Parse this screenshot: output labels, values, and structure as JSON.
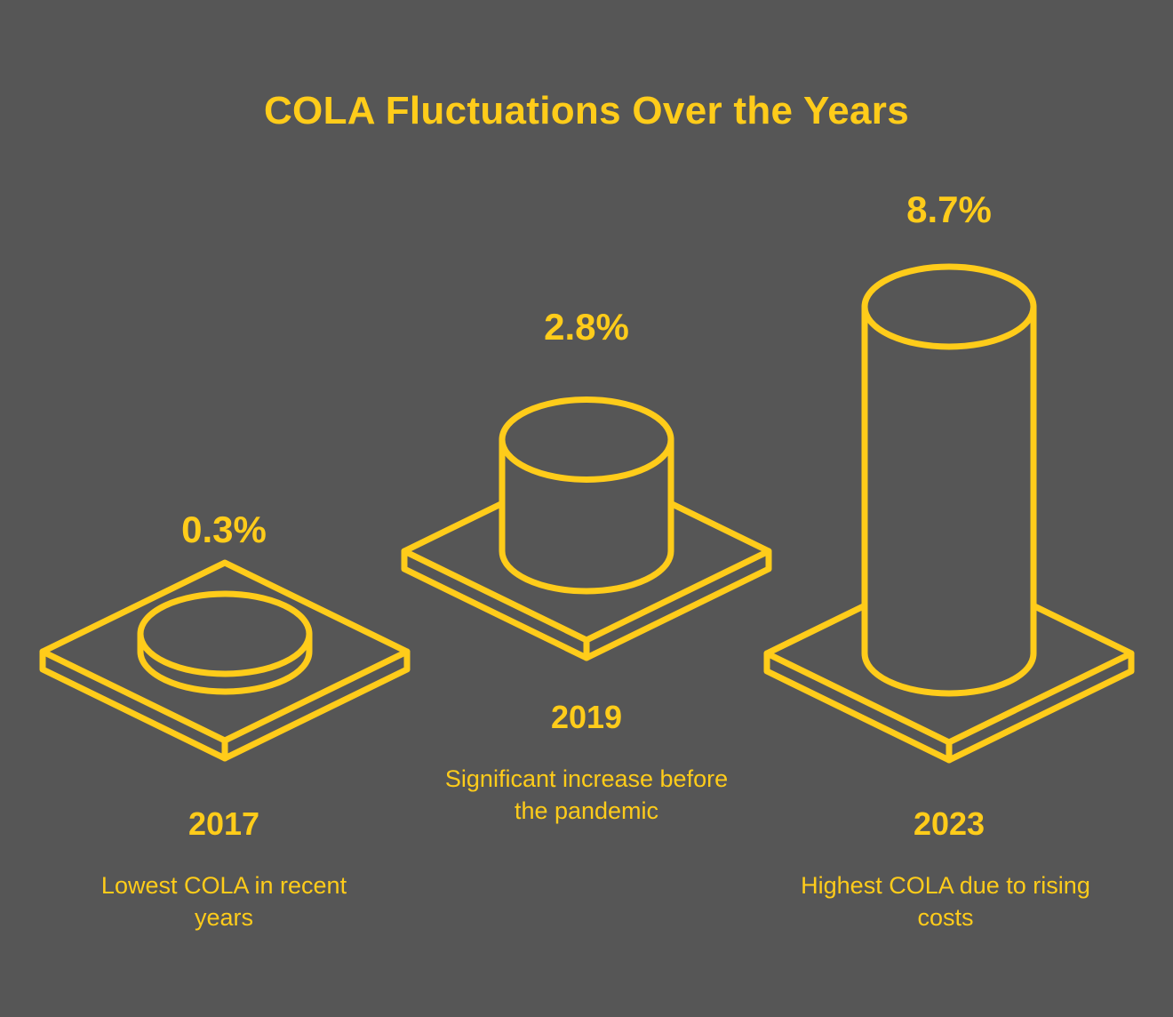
{
  "colors": {
    "background": "#565656",
    "accent": "#FFCC1A"
  },
  "chart_data": {
    "type": "bar",
    "title": "COLA Fluctuations Over the Years",
    "categories": [
      "2017",
      "2019",
      "2023"
    ],
    "values": [
      0.3,
      2.8,
      8.7
    ],
    "value_labels": [
      "0.3%",
      "2.8%",
      "8.7%"
    ],
    "descriptions": [
      "Lowest COLA in recent years",
      "Significant increase before the pandemic",
      "Highest COLA due to rising costs"
    ]
  }
}
